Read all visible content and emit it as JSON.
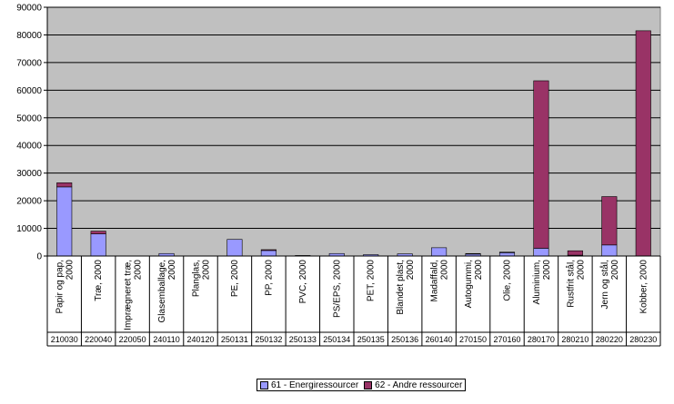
{
  "chart_data": {
    "type": "bar",
    "stacked": true,
    "title": "",
    "xlabel": "",
    "ylabel": "",
    "ylim": [
      0,
      90000
    ],
    "yticks": [
      0,
      10000,
      20000,
      30000,
      40000,
      50000,
      60000,
      70000,
      80000,
      90000
    ],
    "grid": true,
    "legend_position": "bottom",
    "categories": [
      {
        "name": "Papir og pap, 2000",
        "code": "210030"
      },
      {
        "name": "Træ, 2000",
        "code": "220040"
      },
      {
        "name": "Imprægneret træ, 2000",
        "code": "220050"
      },
      {
        "name": "Glasemballage, 2000",
        "code": "240110"
      },
      {
        "name": "Planglas, 2000",
        "code": "240120"
      },
      {
        "name": "PE, 2000",
        "code": "250131"
      },
      {
        "name": "PP, 2000",
        "code": "250132"
      },
      {
        "name": "PVC, 2000",
        "code": "250133"
      },
      {
        "name": "PS/EPS, 2000",
        "code": "250134"
      },
      {
        "name": "PET, 2000",
        "code": "250135"
      },
      {
        "name": "Blandet plast, 2000",
        "code": "250136"
      },
      {
        "name": "Madaffald, 2000",
        "code": "260140"
      },
      {
        "name": "Autogummi, 2000",
        "code": "270150"
      },
      {
        "name": "Olie, 2000",
        "code": "270160"
      },
      {
        "name": "Aluminium, 2000",
        "code": "280170"
      },
      {
        "name": "Rustfrit stål, 2000",
        "code": "280210"
      },
      {
        "name": "Jern og stål, 2000",
        "code": "280220"
      },
      {
        "name": "Kobber, 2000",
        "code": "280230"
      }
    ],
    "series": [
      {
        "name": "61 - Energiressourcer",
        "color": "#9999FF",
        "values": [
          25000,
          8000,
          0,
          900,
          0,
          6000,
          2000,
          200,
          900,
          500,
          800,
          3000,
          700,
          1200,
          2800,
          300,
          4000,
          0
        ]
      },
      {
        "name": "62 - Andre ressourcer",
        "color": "#993366",
        "values": [
          1500,
          1000,
          0,
          0,
          0,
          0,
          300,
          0,
          0,
          0,
          0,
          0,
          200,
          200,
          60600,
          1600,
          17500,
          81500
        ]
      }
    ],
    "plot_background": "#C0C0C0"
  }
}
